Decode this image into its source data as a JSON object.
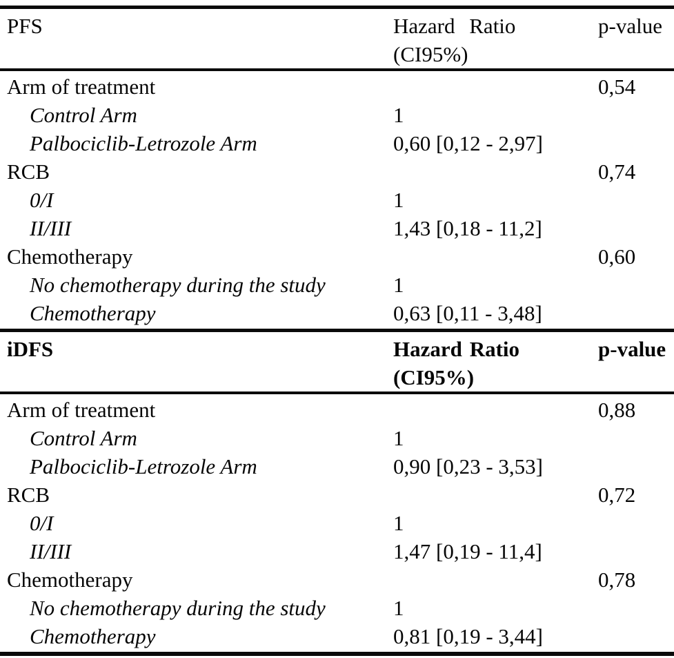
{
  "table": {
    "sections": [
      {
        "header": {
          "title": "PFS",
          "hr_line1": "Hazard Ratio",
          "hr_line2": "(CI95%)",
          "pvalue": "p-value"
        },
        "rows": [
          {
            "label": "Arm of treatment",
            "hazard_ratio": "",
            "p_value": "0,54"
          },
          {
            "label": "Control Arm",
            "hazard_ratio": "1",
            "p_value": ""
          },
          {
            "label": "Palbociclib-Letrozole Arm",
            "hazard_ratio": "0,60 [0,12 - 2,97]",
            "p_value": ""
          },
          {
            "label": "RCB",
            "hazard_ratio": "",
            "p_value": "0,74"
          },
          {
            "label": "0/I",
            "hazard_ratio": "1",
            "p_value": ""
          },
          {
            "label": "II/III",
            "hazard_ratio": "1,43 [0,18 - 11,2]",
            "p_value": ""
          },
          {
            "label": "Chemotherapy",
            "hazard_ratio": "",
            "p_value": "0,60"
          },
          {
            "label": "No chemotherapy during the study",
            "hazard_ratio": "1",
            "p_value": ""
          },
          {
            "label": "Chemotherapy",
            "hazard_ratio": "0,63 [0,11 - 3,48]",
            "p_value": ""
          }
        ]
      },
      {
        "header": {
          "title": "iDFS",
          "hr_line1": "Hazard Ratio",
          "hr_line2": "(CI95%)",
          "pvalue": "p-value"
        },
        "rows": [
          {
            "label": "Arm of treatment",
            "hazard_ratio": "",
            "p_value": "0,88"
          },
          {
            "label": "Control Arm",
            "hazard_ratio": "1",
            "p_value": ""
          },
          {
            "label": "Palbociclib-Letrozole Arm",
            "hazard_ratio": "0,90 [0,23 - 3,53]",
            "p_value": ""
          },
          {
            "label": "RCB",
            "hazard_ratio": "",
            "p_value": "0,72"
          },
          {
            "label": "0/I",
            "hazard_ratio": "1",
            "p_value": ""
          },
          {
            "label": "II/III",
            "hazard_ratio": "1,47 [0,19 - 11,4]",
            "p_value": ""
          },
          {
            "label": "Chemotherapy",
            "hazard_ratio": "",
            "p_value": "0,78"
          },
          {
            "label": "No chemotherapy during the study",
            "hazard_ratio": "1",
            "p_value": ""
          },
          {
            "label": "Chemotherapy",
            "hazard_ratio": "0,81 [0,19 - 3,44]",
            "p_value": ""
          }
        ]
      }
    ]
  }
}
